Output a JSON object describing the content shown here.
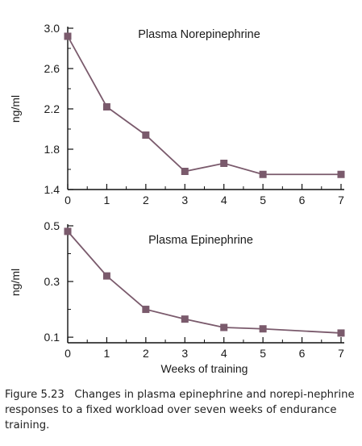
{
  "chart_data": [
    {
      "type": "line",
      "title": "Plasma Norepinephrine",
      "ylabel": "ng/ml",
      "xlabel": "",
      "x": [
        0,
        1,
        2,
        3,
        4,
        5,
        7
      ],
      "y": [
        2.92,
        2.22,
        1.94,
        1.58,
        1.66,
        1.55,
        1.55
      ],
      "ylim": [
        1.4,
        3.0
      ],
      "xlim": [
        0,
        7
      ],
      "yticks": [
        "1.4",
        "1.8",
        "2.2",
        "2.6",
        "3.0"
      ],
      "xticks": [
        "0",
        "1",
        "2",
        "3",
        "4",
        "5",
        "6",
        "7"
      ],
      "marker": "square",
      "color": "#7a5a6c"
    },
    {
      "type": "line",
      "title": "Plasma Epinephrine",
      "ylabel": "ng/ml",
      "xlabel": "Weeks of training",
      "x": [
        0,
        1,
        2,
        3,
        4,
        5,
        7
      ],
      "y": [
        0.48,
        0.32,
        0.2,
        0.165,
        0.135,
        0.13,
        0.115
      ],
      "ylim": [
        0.08,
        0.5
      ],
      "xlim": [
        0,
        7
      ],
      "yticks": [
        "0.1",
        "0.3",
        "0.5"
      ],
      "xticks": [
        "0",
        "1",
        "2",
        "3",
        "4",
        "5",
        "6",
        "7"
      ],
      "marker": "square",
      "color": "#7a5a6c"
    }
  ],
  "caption": {
    "label": "Figure 5.23",
    "text": "Changes in plasma epinephrine and norepi-nephrine responses to a fixed workload over seven weeks of endurance training."
  }
}
